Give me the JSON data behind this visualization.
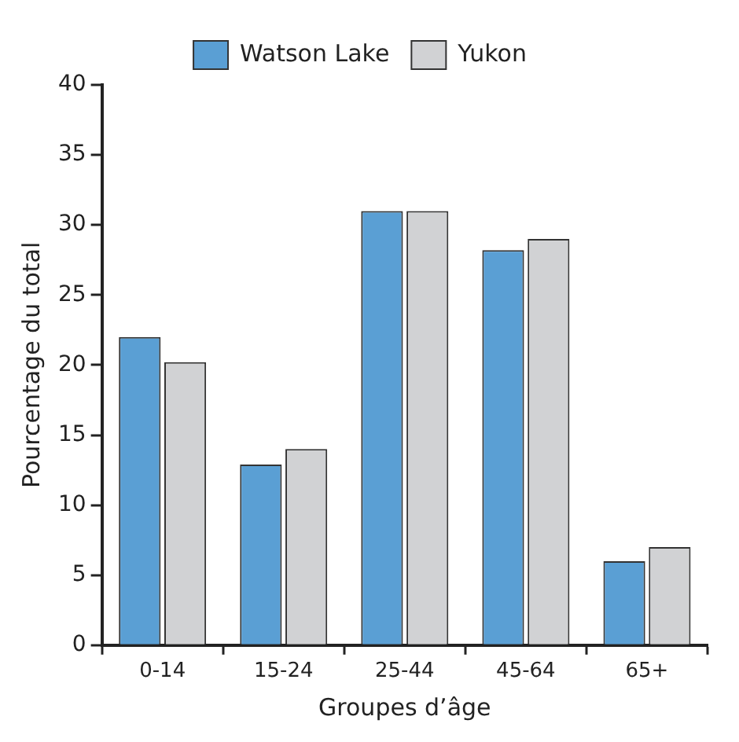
{
  "chart_data": {
    "type": "bar",
    "xlabel": "Groupes d’âge",
    "ylabel": "Pourcentage du total",
    "categories": [
      "0-14",
      "15-24",
      "25-44",
      "45-64",
      "65+"
    ],
    "series": [
      {
        "name": "Watson Lake",
        "color": "#5a9fd4",
        "values": [
          22,
          12.9,
          31,
          28.2,
          6
        ]
      },
      {
        "name": "Yukon",
        "color": "#d1d2d4",
        "values": [
          20.2,
          14,
          31,
          29,
          7
        ]
      }
    ],
    "ylim": [
      0,
      40
    ],
    "yticks": [
      0,
      5,
      10,
      15,
      20,
      25,
      30,
      35,
      40
    ],
    "grid": false,
    "legend": "top"
  }
}
